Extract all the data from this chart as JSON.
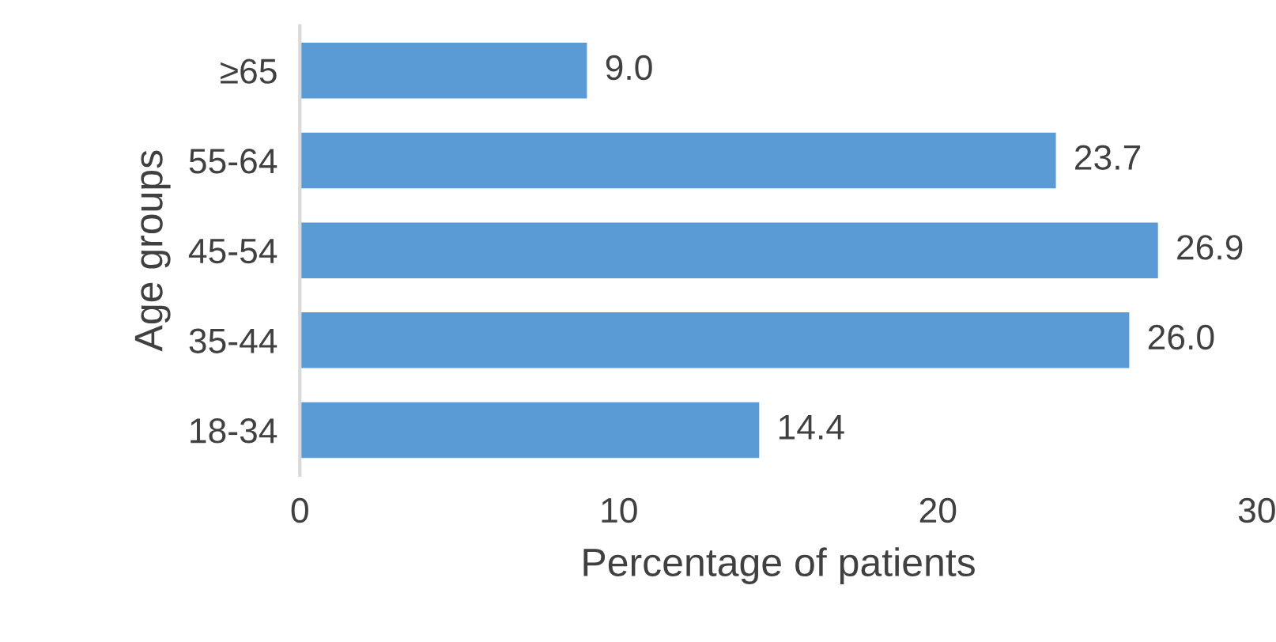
{
  "chart_data": {
    "type": "bar",
    "orientation": "horizontal",
    "ylabel": "Age groups",
    "xlabel": "Percentage of patients",
    "categories": [
      "≥65",
      "55-64",
      "45-54",
      "35-44",
      "18-34"
    ],
    "values": [
      9.0,
      23.7,
      26.9,
      26.0,
      14.4
    ],
    "value_labels": [
      "9.0",
      "23.7",
      "26.9",
      "26.0",
      "14.4"
    ],
    "color": "#5b9bd5",
    "xlim": [
      0,
      30
    ],
    "xticks": [
      0,
      10,
      20,
      30
    ],
    "grid": false,
    "legend": false
  }
}
